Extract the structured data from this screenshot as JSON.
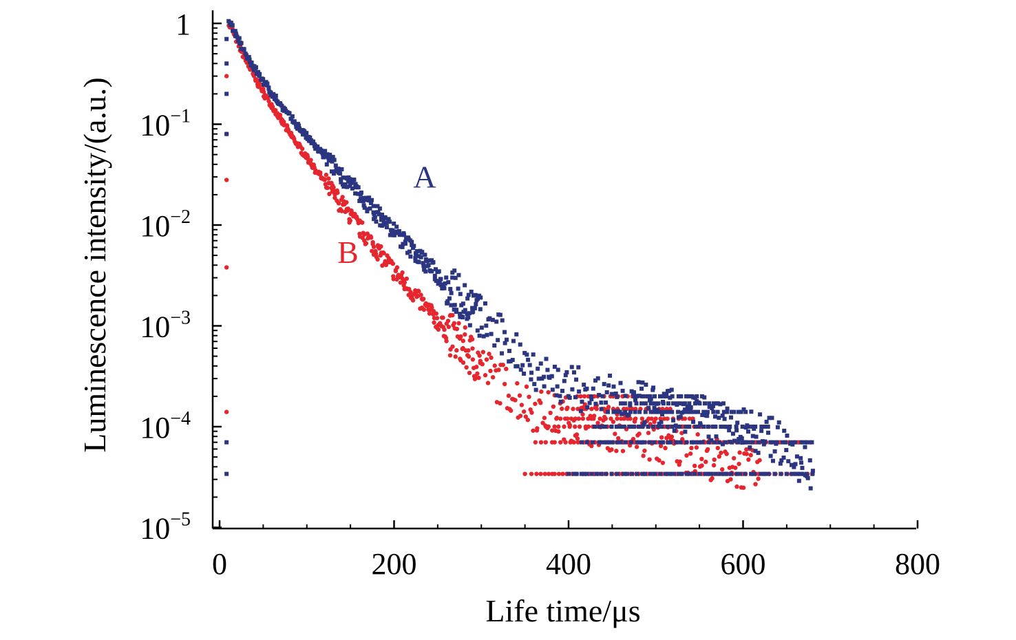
{
  "chart_data": {
    "type": "scatter",
    "title": "",
    "xlabel": "Life time/μs",
    "ylabel": "Luminescence intensity/(a.u.)",
    "xlim": [
      -5,
      800
    ],
    "ylim": [
      1e-05,
      1.25
    ],
    "yscale": "log",
    "grid": false,
    "x_ticks": [
      {
        "value": 0,
        "label": "0"
      },
      {
        "value": 200,
        "label": "200"
      },
      {
        "value": 400,
        "label": "400"
      },
      {
        "value": 600,
        "label": "600"
      },
      {
        "value": 800,
        "label": "800"
      }
    ],
    "y_ticks": [
      {
        "value": 1,
        "base": "1",
        "exp": ""
      },
      {
        "value": 0.1,
        "base": "10",
        "exp": "−1"
      },
      {
        "value": 0.01,
        "base": "10",
        "exp": "−2"
      },
      {
        "value": 0.001,
        "base": "10",
        "exp": "−3"
      },
      {
        "value": 0.0001,
        "base": "10",
        "exp": "−4"
      },
      {
        "value": 1e-05,
        "base": "10",
        "exp": "−5"
      }
    ],
    "series": [
      {
        "name": "A",
        "color": "#2b3580",
        "marker": "square",
        "label_at": [
          222,
          0.0235
        ],
        "points": [
          [
            8,
            3.4e-05
          ],
          [
            8,
            7e-05
          ],
          [
            8,
            0.08
          ],
          [
            8,
            0.2
          ],
          [
            8,
            0.4
          ],
          [
            8,
            0.7
          ],
          [
            10,
            0.98
          ],
          [
            12,
            1.0
          ],
          [
            20,
            0.72
          ],
          [
            40,
            0.36
          ],
          [
            60,
            0.2
          ],
          [
            80,
            0.12
          ],
          [
            100,
            0.075
          ],
          [
            120,
            0.048
          ],
          [
            140,
            0.031
          ],
          [
            160,
            0.02
          ],
          [
            180,
            0.013
          ],
          [
            200,
            0.0087
          ],
          [
            220,
            0.0058
          ],
          [
            240,
            0.0039
          ],
          [
            260,
            0.0026
          ],
          [
            280,
            0.0018
          ],
          [
            300,
            0.0012
          ],
          [
            320,
            0.0008
          ],
          [
            340,
            0.00055
          ],
          [
            360,
            0.0004
          ],
          [
            380,
            0.0003
          ],
          [
            400,
            0.00025
          ],
          [
            440,
            0.0002
          ],
          [
            480,
            0.00017
          ],
          [
            520,
            0.00014
          ],
          [
            560,
            0.00012
          ],
          [
            600,
            0.0001
          ],
          [
            640,
            7e-05
          ],
          [
            680,
            3.4e-05
          ]
        ]
      },
      {
        "name": "B",
        "color": "#e6262e",
        "marker": "circle",
        "label_at": [
          135,
          0.0042
        ],
        "points": [
          [
            8,
            0.0038
          ],
          [
            8,
            0.00014
          ],
          [
            8,
            0.028
          ],
          [
            8,
            0.08
          ],
          [
            8,
            0.3
          ],
          [
            10,
            0.97
          ],
          [
            12,
            0.99
          ],
          [
            20,
            0.66
          ],
          [
            40,
            0.29
          ],
          [
            60,
            0.15
          ],
          [
            80,
            0.082
          ],
          [
            100,
            0.047
          ],
          [
            120,
            0.027
          ],
          [
            140,
            0.016
          ],
          [
            160,
            0.0095
          ],
          [
            180,
            0.0057
          ],
          [
            200,
            0.0035
          ],
          [
            220,
            0.0022
          ],
          [
            240,
            0.0014
          ],
          [
            260,
            0.0009
          ],
          [
            280,
            0.0006
          ],
          [
            300,
            0.0004
          ],
          [
            320,
            0.00028
          ],
          [
            340,
            0.0002
          ],
          [
            360,
            0.00015
          ],
          [
            400,
            0.00012
          ],
          [
            440,
            0.0001
          ],
          [
            500,
            7e-05
          ],
          [
            560,
            5e-05
          ],
          [
            620,
            3.4e-05
          ]
        ]
      }
    ]
  }
}
